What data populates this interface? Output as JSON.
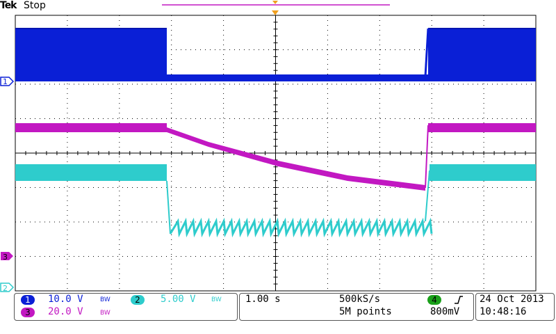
{
  "header": {
    "brand": "Tek",
    "state": "Stop"
  },
  "markers": {
    "ch1": "1",
    "ch3": "3",
    "ch2": "2"
  },
  "colors": {
    "ch1": "#0a1fd6",
    "ch2": "#2ecccc",
    "ch3": "#c218c2",
    "grid": "#000000",
    "trigger": "#f0a020",
    "green": "#1aa01a"
  },
  "channels": {
    "ch1": {
      "num": "1",
      "scale": "10.0 V",
      "bw": "BW"
    },
    "ch2": {
      "num": "2",
      "scale": "5.00 V",
      "bw": "BW"
    },
    "ch3": {
      "num": "3",
      "scale": "20.0 V",
      "bw": "BW"
    }
  },
  "timebase": {
    "scale": "1.00 s",
    "rate": "500kS/s",
    "points": "5M points"
  },
  "trigger": {
    "source": "4",
    "slope_icon": "rising-edge-icon",
    "level": "800mV"
  },
  "datetime": {
    "date": "24 Oct  2013",
    "time": "10:48:16"
  }
}
